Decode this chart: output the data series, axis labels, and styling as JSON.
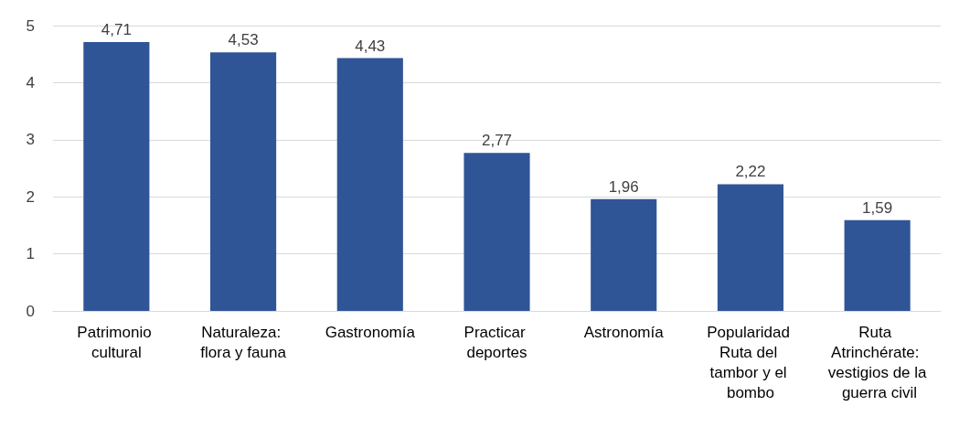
{
  "chart_data": {
    "type": "bar",
    "categories": [
      "Patrimonio cultural",
      "Naturaleza: flora y fauna",
      "Gastronomía",
      "Practicar deportes",
      "Astronomía",
      "Popularidad Ruta del tambor y el bombo",
      "Ruta Atrinchérate: vestigios de la guerra civil"
    ],
    "values": [
      4.71,
      4.53,
      4.43,
      2.77,
      1.96,
      2.22,
      1.59
    ],
    "value_labels": [
      "4,71",
      "4,53",
      "4,43",
      "2,77",
      "1,96",
      "2,22",
      "1,59"
    ],
    "color": "#2f5597",
    "ylim": [
      0,
      5
    ],
    "yticks": [
      0,
      1,
      2,
      3,
      4,
      5
    ],
    "grid": "y"
  }
}
